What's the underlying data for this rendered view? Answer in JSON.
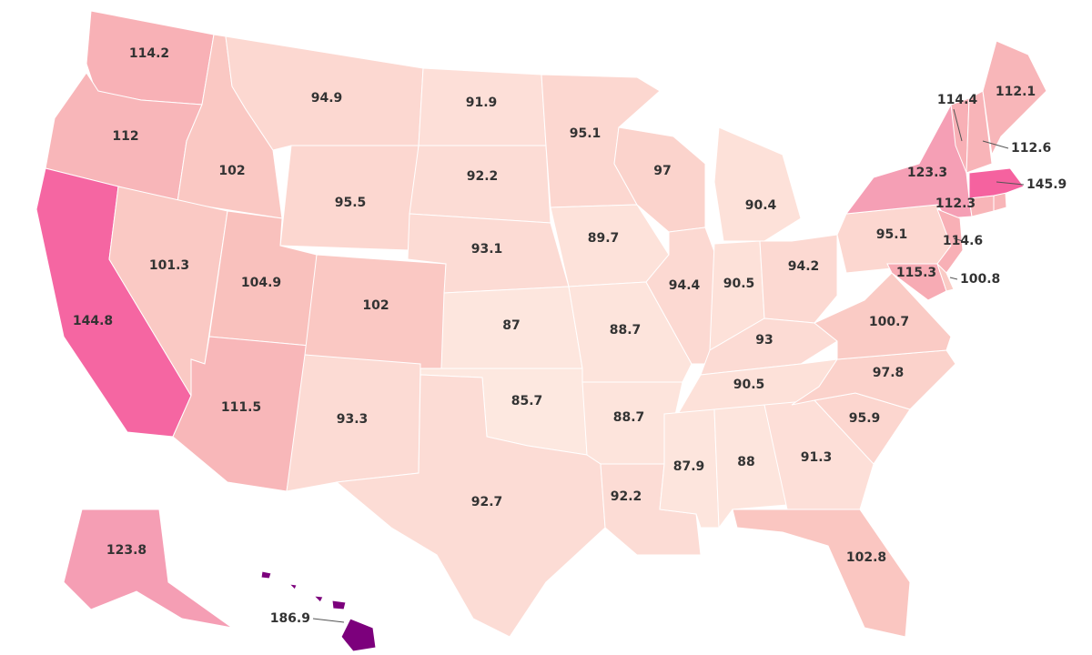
{
  "map": {
    "regions": [
      {
        "value": 114.2,
        "color": "#f8b1b6"
      },
      {
        "value": 112,
        "color": "#f8b6b9"
      },
      {
        "value": 144.8,
        "color": "#f566a2"
      },
      {
        "value": 102,
        "color": "#fac8c3"
      },
      {
        "value": 101.3,
        "color": "#fac9c4"
      },
      {
        "value": 94.9,
        "color": "#fcd8d1"
      },
      {
        "value": 95.5,
        "color": "#fcd7d0"
      },
      {
        "value": 104.9,
        "color": "#f9c1bd"
      },
      {
        "value": 111.5,
        "color": "#f8b7b9"
      },
      {
        "value": 102,
        "color": "#fac8c3"
      },
      {
        "value": 93.3,
        "color": "#fcdbd4"
      },
      {
        "value": 91.9,
        "color": "#fddfd8"
      },
      {
        "value": 92.2,
        "color": "#fcdcd5"
      },
      {
        "value": 93.1,
        "color": "#fcdbd4"
      },
      {
        "value": 87,
        "color": "#fde6de"
      },
      {
        "value": 85.7,
        "color": "#fde8e0"
      },
      {
        "value": 92.7,
        "color": "#fcdcd5"
      },
      {
        "value": 95.1,
        "color": "#fcd7d0"
      },
      {
        "value": 89.7,
        "color": "#fde2da"
      },
      {
        "value": 88.7,
        "color": "#fde4dc"
      },
      {
        "value": 88.7,
        "color": "#fde4dc"
      },
      {
        "value": 92.2,
        "color": "#fcdcd5"
      },
      {
        "value": 97,
        "color": "#fbd3cc"
      },
      {
        "value": 94.4,
        "color": "#fcd9d2"
      },
      {
        "value": 90.4,
        "color": "#fde1d9"
      },
      {
        "value": 90.5,
        "color": "#fde1d9"
      },
      {
        "value": 94.2,
        "color": "#fcd9d2"
      },
      {
        "value": 93,
        "color": "#fcdbd4"
      },
      {
        "value": 90.5,
        "color": "#fde1d9"
      },
      {
        "value": 87.9,
        "color": "#fde5dd"
      },
      {
        "value": 88,
        "color": "#fde5dd"
      },
      {
        "value": 91.3,
        "color": "#fddfd8"
      },
      {
        "value": 102.8,
        "color": "#fac6c1"
      },
      {
        "value": 95.9,
        "color": "#fcd6cf"
      },
      {
        "value": 97.8,
        "color": "#fbd2cb"
      },
      {
        "value": 100.7,
        "color": "#facbc5"
      },
      {
        "value": 95.1,
        "color": "#fcd7d0"
      },
      {
        "value": 123.3,
        "color": "#f59fb5"
      },
      {
        "value": 114.6,
        "color": "#f8b0b6"
      },
      {
        "value": 115.3,
        "color": "#f7abb4"
      },
      {
        "value": 100.8,
        "color": "#facbc5"
      },
      {
        "value": 112.3,
        "color": "#f8b5b8"
      },
      {
        "value": 145.9,
        "color": "#f5629f"
      },
      {
        "value": 114.4,
        "color": "#f8b0b6"
      },
      {
        "value": 112.6,
        "color": "#f8b4b8"
      },
      {
        "value": 112.1,
        "color": "#f8b6b9"
      },
      {
        "value": 123.8,
        "color": "#f59eb4"
      },
      {
        "value": 186.9,
        "color": "#7c007c"
      }
    ]
  }
}
